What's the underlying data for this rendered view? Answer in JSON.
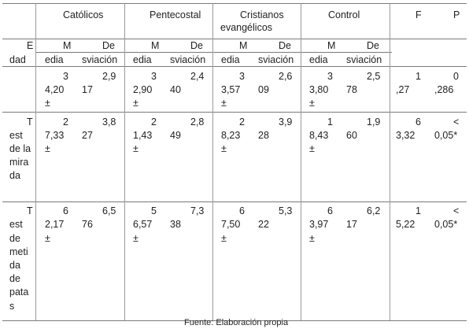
{
  "header": {
    "groups": [
      "Católicos",
      "Pentecostal",
      "Cristianos",
      "evangélicos",
      "Control"
    ],
    "stats": [
      "F",
      "P"
    ],
    "row_label": [
      "E",
      "dad"
    ],
    "sub": [
      [
        "M",
        "edia",
        "De",
        "sviación"
      ],
      [
        "M",
        "edia",
        "De",
        "sviación"
      ],
      [
        "M",
        "edia",
        "De",
        "sviación"
      ],
      [
        "M",
        "edia",
        "De",
        "sviación"
      ]
    ]
  },
  "rows": [
    {
      "label": [],
      "cells": [
        [
          "3",
          "4,20",
          "±",
          "2,9",
          "17"
        ],
        [
          "3",
          "2,90",
          "±",
          "2,4",
          "40"
        ],
        [
          "3",
          "3,57",
          "±",
          "2,6",
          "09"
        ],
        [
          "3",
          "3,80",
          "±",
          "2,5",
          "78"
        ]
      ],
      "F": [
        "1",
        ",27"
      ],
      "P": [
        "0",
        ",286"
      ]
    },
    {
      "label": [
        "T",
        "est",
        "de la",
        "mira",
        "da"
      ],
      "cells": [
        [
          "2",
          "7,33",
          "±",
          "3,8",
          "27"
        ],
        [
          "2",
          "1,43",
          "±",
          "2,8",
          "49"
        ],
        [
          "2",
          "8,23",
          "±",
          "3,9",
          "28"
        ],
        [
          "1",
          "8,43",
          "±",
          "1,9",
          "60"
        ]
      ],
      "F": [
        "6",
        "3,32"
      ],
      "P": [
        "<",
        "0,05*"
      ]
    },
    {
      "label": [
        "T",
        "est",
        "de",
        "meti",
        "da",
        "de",
        "pata",
        "s"
      ],
      "cells": [
        [
          "6",
          "2,17",
          "±",
          "6,5",
          "76"
        ],
        [
          "5",
          "6,57",
          "±",
          "7,3",
          "38"
        ],
        [
          "6",
          "7,50",
          "±",
          "5,3",
          "22"
        ],
        [
          "6",
          "3,97",
          "±",
          "6,2",
          "17"
        ]
      ],
      "F": [
        "1",
        "5,22"
      ],
      "P": [
        "<",
        "0,05*"
      ]
    }
  ],
  "footer": "Fuente: Elaboración propia"
}
